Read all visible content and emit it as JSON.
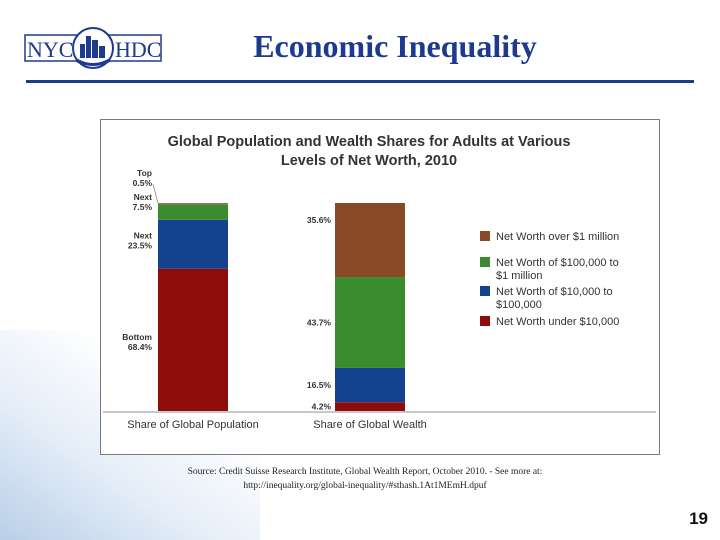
{
  "slide": {
    "title": "Economic Inequality",
    "logo_left": "NYC",
    "logo_right": "HDC",
    "source_line1": "Source: Credit Suisse Research Institute, Global Wealth Report, October 2010. - See more at:",
    "source_line2": "http://inequality.org/global-inequality/#sthash.1At1MEmH.dpuf",
    "page_number": "19"
  },
  "colors": {
    "title": "#1d3a8f",
    "over_1m": "#8b4a27",
    "100k_1m": "#3a8c2e",
    "10k_100k": "#15428f",
    "under_10k": "#8e0c0c"
  },
  "chart_data": {
    "type": "bar",
    "stacked": true,
    "title": "Global Population and Wealth Shares for Adults at Various Levels of Net Worth, 2010",
    "title_lines": [
      "Global Population and Wealth Shares for Adults at Various",
      "Levels of Net Worth, 2010"
    ],
    "categories": [
      "Share of Global Population",
      "Share of Global Wealth"
    ],
    "ylim": [
      0,
      100
    ],
    "series": [
      {
        "name": "Net Worth under $10,000",
        "values": [
          68.4,
          4.2
        ]
      },
      {
        "name": "Net Worth of $10,000 to $100,000",
        "values": [
          23.5,
          16.5
        ]
      },
      {
        "name": "Net Worth of $100,000 to $1 million",
        "values": [
          7.5,
          43.7
        ]
      },
      {
        "name": "Net Worth over $1 million",
        "values": [
          0.5,
          35.6
        ]
      }
    ],
    "legend": [
      {
        "lines": [
          "Net Worth over $1 million"
        ]
      },
      {
        "lines": [
          "Net Worth of $100,000 to",
          "$1 million"
        ]
      },
      {
        "lines": [
          "Net Worth of $10,000 to",
          "$100,000"
        ]
      },
      {
        "lines": [
          "Net Worth under $10,000"
        ]
      }
    ],
    "population_labels": [
      {
        "name": "Bottom",
        "value": "68.4%"
      },
      {
        "name": "Next",
        "value": "23.5%"
      },
      {
        "name": "Next",
        "value": "7.5%"
      },
      {
        "name": "Top",
        "value": "0.5%"
      }
    ],
    "wealth_labels": [
      "4.2%",
      "16.5%",
      "43.7%",
      "35.6%"
    ]
  }
}
